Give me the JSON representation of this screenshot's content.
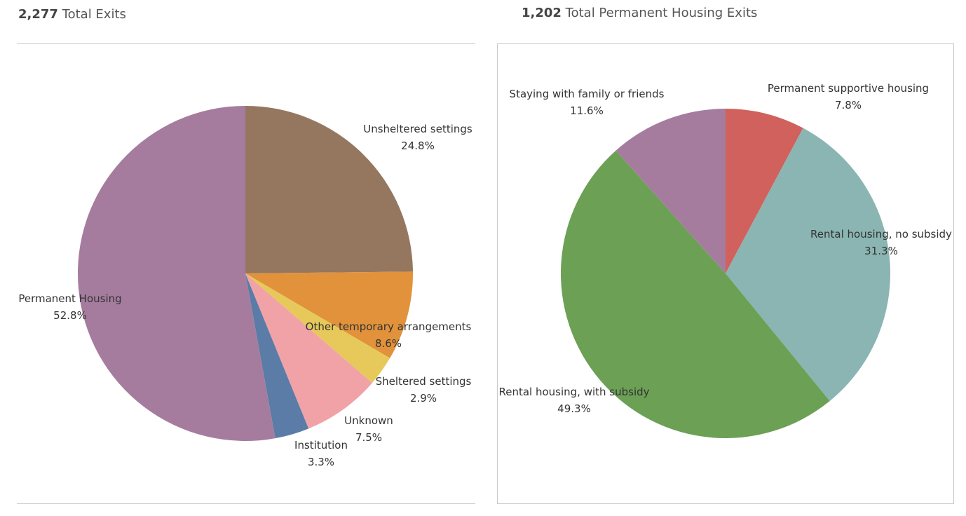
{
  "chart_data": [
    {
      "type": "pie",
      "title_count": "2,277",
      "title_text": "Total Exits",
      "slices": [
        {
          "name": "Unsheltered settings",
          "value": 24.8,
          "label": "24.8%",
          "color": "#957760"
        },
        {
          "name": "Other temporary arrangements",
          "value": 8.6,
          "label": "8.6%",
          "color": "#e1923b"
        },
        {
          "name": "Sheltered settings",
          "value": 2.9,
          "label": "2.9%",
          "color": "#e6c95a"
        },
        {
          "name": "Unknown",
          "value": 7.5,
          "label": "7.5%",
          "color": "#f1a2a6"
        },
        {
          "name": "Institution",
          "value": 3.3,
          "label": "3.3%",
          "color": "#5a7ca6"
        },
        {
          "name": "Permanent Housing",
          "value": 52.8,
          "label": "52.8%",
          "color": "#a57c9e"
        }
      ]
    },
    {
      "type": "pie",
      "title_count": "1,202",
      "title_text": "Total Permanent Housing Exits",
      "slices": [
        {
          "name": "Permanent supportive housing",
          "value": 7.8,
          "label": "7.8%",
          "color": "#d0615c"
        },
        {
          "name": "Rental housing, no subsidy",
          "value": 31.3,
          "label": "31.3%",
          "color": "#8ab5b2"
        },
        {
          "name": "Rental housing, with subsidy",
          "value": 49.3,
          "label": "49.3%",
          "color": "#6ca055"
        },
        {
          "name": "Staying with family or friends",
          "value": 11.6,
          "label": "11.6%",
          "color": "#a57c9e"
        }
      ]
    }
  ]
}
